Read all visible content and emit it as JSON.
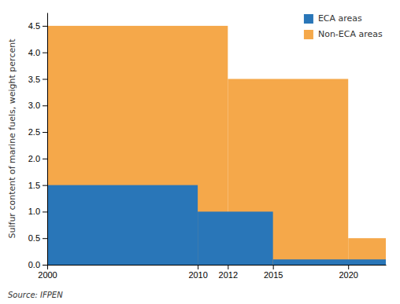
{
  "chart_data": {
    "type": "step",
    "ylabel": "Sulfur content of marine fuels, weight percent",
    "source": "Source: IFPEN",
    "series": [
      {
        "name": "ECA areas",
        "color": "#2976b8",
        "x_start": [
          2000,
          2010,
          2015
        ],
        "x_end": [
          2010,
          2015,
          2022.5
        ],
        "values": [
          1.5,
          1.0,
          0.1
        ]
      },
      {
        "name": "Non-ECA areas",
        "color": "#f5a84a",
        "x_start": [
          2000,
          2012,
          2020
        ],
        "x_end": [
          2012,
          2020,
          2022.5
        ],
        "values": [
          4.5,
          3.5,
          0.5
        ]
      }
    ],
    "xlim": [
      2000,
      2022.5
    ],
    "ylim": [
      0,
      4.75
    ],
    "xticks": [
      2000,
      2010,
      2012,
      2015,
      2020
    ],
    "yticks": [
      {
        "value": 0,
        "label": "0.0"
      },
      0.5,
      {
        "value": 1.0,
        "label": "1.0"
      },
      1.5,
      {
        "value": 2.0,
        "label": "2.0"
      },
      2.5,
      {
        "value": 3.0,
        "label": "3.0"
      },
      3.5,
      {
        "value": 4.0,
        "label": "4.0"
      },
      4.5
    ],
    "grid": false,
    "legend": "upper right"
  }
}
